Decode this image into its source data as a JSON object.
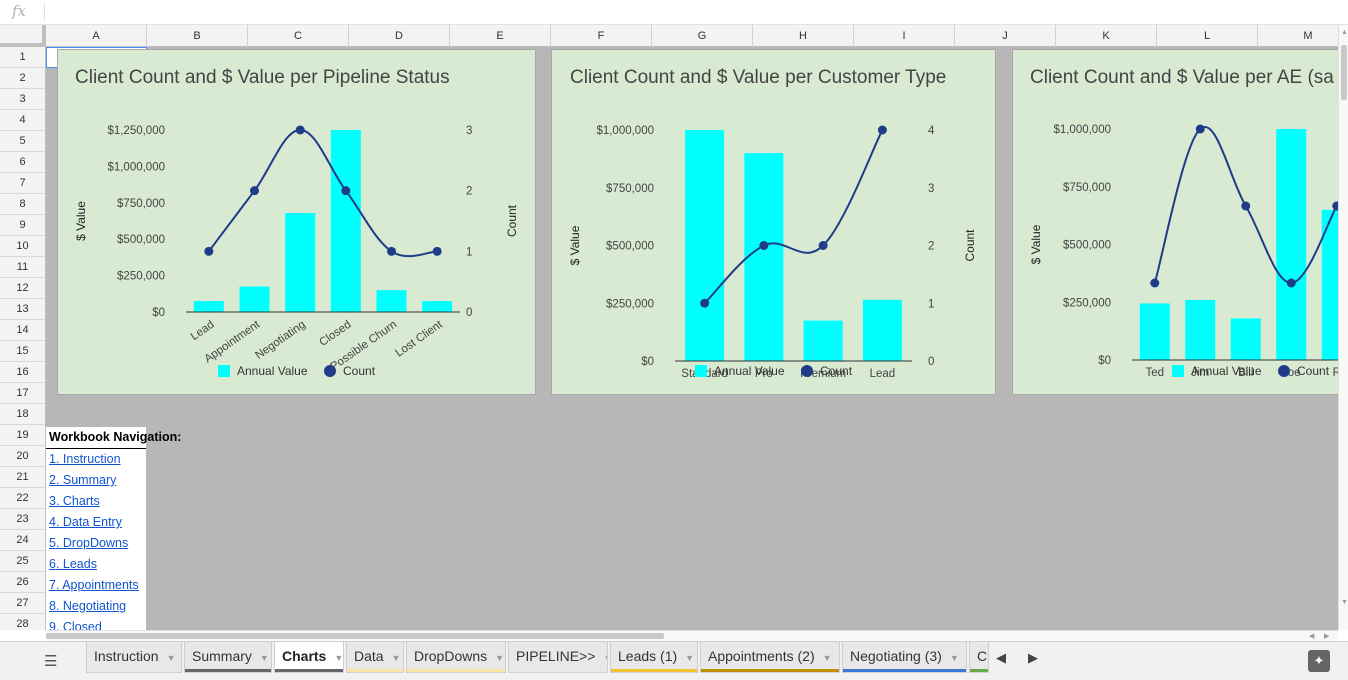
{
  "formula_bar": {
    "fx_label": "fx",
    "value": ""
  },
  "columns": [
    "A",
    "B",
    "C",
    "D",
    "E",
    "F",
    "G",
    "H",
    "I",
    "J",
    "K",
    "L",
    "M"
  ],
  "rows": [
    "1",
    "2",
    "3",
    "4",
    "5",
    "6",
    "7",
    "8",
    "9",
    "10",
    "11",
    "12",
    "13",
    "14",
    "15",
    "16",
    "17",
    "18",
    "19",
    "20",
    "21",
    "22",
    "23",
    "24",
    "25",
    "26",
    "27",
    "28"
  ],
  "navigation": {
    "title": "Workbook Navigation:",
    "links": [
      "1. Instruction",
      "2. Summary",
      "3. Charts",
      "4. Data Entry",
      "5. DropDowns",
      "6. Leads",
      "7. Appointments",
      "8. Negotiating",
      "9. Closed"
    ]
  },
  "legend": {
    "bar_label": "Annual Value",
    "line_label": "Count"
  },
  "colors": {
    "bar": "#00ffff",
    "line": "#1f3c88",
    "chart_bg": "#d9ead3"
  },
  "chart_data": [
    {
      "type": "bar",
      "title": "Client Count and $ Value per Pipeline Status",
      "categories": [
        "Lead",
        "Appointment",
        "Negotiating",
        "Closed",
        "Possible Churn",
        "Lost Client"
      ],
      "series": [
        {
          "name": "Annual Value",
          "type": "bar",
          "axis": "left",
          "values": [
            75000,
            175000,
            680000,
            1250000,
            150000,
            75000
          ]
        },
        {
          "name": "Count",
          "type": "line",
          "axis": "right",
          "values": [
            1,
            2,
            3,
            2,
            1,
            1
          ]
        }
      ],
      "ylabel": "$ Value",
      "y2label": "Count",
      "ylim": [
        0,
        1250000
      ],
      "y2lim": [
        0,
        3
      ],
      "yticks": [
        "$0",
        "$250,000",
        "$500,000",
        "$750,000",
        "$1,000,000",
        "$1,250,000"
      ],
      "y2ticks": [
        "0",
        "1",
        "2",
        "3"
      ],
      "x_labels_rotated": true,
      "legend_position": "bottom"
    },
    {
      "type": "bar",
      "title": "Client Count and $ Value per Customer Type",
      "categories": [
        "Standard",
        "Pro",
        "Premium",
        "Lead"
      ],
      "series": [
        {
          "name": "Annual Value",
          "type": "bar",
          "axis": "left",
          "values": [
            1000000,
            900000,
            175000,
            265000
          ]
        },
        {
          "name": "Count",
          "type": "line",
          "axis": "right",
          "values": [
            1,
            2,
            2,
            4
          ]
        }
      ],
      "ylabel": "$ Value",
      "y2label": "Count",
      "ylim": [
        0,
        1000000
      ],
      "y2lim": [
        0,
        4
      ],
      "yticks": [
        "$0",
        "$250,000",
        "$500,000",
        "$750,000",
        "$1,000,000"
      ],
      "y2ticks": [
        "0",
        "1",
        "2",
        "3",
        "4"
      ],
      "x_labels_rotated": false,
      "legend_position": "bottom"
    },
    {
      "type": "bar",
      "title": "Client Count and $ Value per AE (sa",
      "categories": [
        "Ted",
        "Jim",
        "Bill",
        "Joe",
        "R"
      ],
      "series": [
        {
          "name": "Annual Value",
          "type": "bar",
          "axis": "left",
          "values": [
            245000,
            260000,
            180000,
            1000000,
            650000
          ]
        },
        {
          "name": "Count",
          "type": "line",
          "axis": "right",
          "values": [
            1,
            3,
            2,
            1,
            2
          ]
        }
      ],
      "ylabel": "$ Value",
      "y2label": "",
      "ylim": [
        0,
        1000000
      ],
      "y2lim": [
        0,
        3
      ],
      "yticks": [
        "$0",
        "$250,000",
        "$500,000",
        "$750,000",
        "$1,000,000"
      ],
      "y2ticks": [],
      "x_labels_rotated": false,
      "legend_position": "bottom"
    }
  ],
  "tabs": [
    {
      "label": "Instruction",
      "color": ""
    },
    {
      "label": "Summary",
      "color": "#666666"
    },
    {
      "label": "Charts",
      "color": "#666666",
      "active": true
    },
    {
      "label": "Data",
      "color": "#f6e3a7"
    },
    {
      "label": "DropDowns",
      "color": "#f6e3a7"
    },
    {
      "label": "PIPELINE>>",
      "color": ""
    },
    {
      "label": "Leads (1)",
      "color": "#f1c232"
    },
    {
      "label": "Appointments (2)",
      "color": "#bf9000"
    },
    {
      "label": "Negotiating (3)",
      "color": "#3c78d8"
    },
    {
      "label": "C",
      "color": "#6aa84f"
    }
  ]
}
